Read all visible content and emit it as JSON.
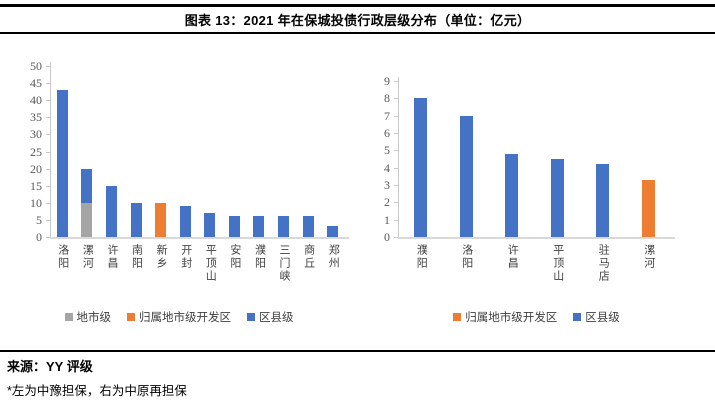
{
  "page": {
    "title": "图表 13：2021 年在保城投债行政层级分布（单位：亿元）"
  },
  "colors": {
    "blue": "#4472c4",
    "orange": "#ed7d31",
    "gray": "#a5a5a5",
    "axis": "#c9c9c9",
    "baseline": "#d9d9d9",
    "tick_label": "#595959",
    "rule": "#000000"
  },
  "series_colors": {
    "地市级": "#a5a5a5",
    "归属地市级开发区": "#ed7d31",
    "区县级": "#4472c4"
  },
  "chart_data": [
    {
      "type": "bar",
      "position": "left",
      "categories": [
        "洛阳",
        "漯河",
        "许昌",
        "南阳",
        "新乡",
        "开封",
        "平顶山",
        "安阳",
        "濮阳",
        "三门峡",
        "商丘",
        "郑州"
      ],
      "bars": [
        {
          "category": "洛阳",
          "segments": [
            {
              "series": "区县级",
              "value": 43
            }
          ]
        },
        {
          "category": "漯河",
          "segments": [
            {
              "series": "地市级",
              "value": 10
            },
            {
              "series": "区县级",
              "value": 10
            }
          ]
        },
        {
          "category": "许昌",
          "segments": [
            {
              "series": "区县级",
              "value": 15
            }
          ]
        },
        {
          "category": "南阳",
          "segments": [
            {
              "series": "区县级",
              "value": 10
            }
          ]
        },
        {
          "category": "新乡",
          "segments": [
            {
              "series": "归属地市级开发区",
              "value": 10
            }
          ]
        },
        {
          "category": "开封",
          "segments": [
            {
              "series": "区县级",
              "value": 9
            }
          ]
        },
        {
          "category": "平顶山",
          "segments": [
            {
              "series": "区县级",
              "value": 7
            }
          ]
        },
        {
          "category": "安阳",
          "segments": [
            {
              "series": "区县级",
              "value": 6
            }
          ]
        },
        {
          "category": "濮阳",
          "segments": [
            {
              "series": "区县级",
              "value": 6
            }
          ]
        },
        {
          "category": "三门峡",
          "segments": [
            {
              "series": "区县级",
              "value": 6
            }
          ]
        },
        {
          "category": "商丘",
          "segments": [
            {
              "series": "区县级",
              "value": 6
            }
          ]
        },
        {
          "category": "郑州",
          "segments": [
            {
              "series": "区县级",
              "value": 3.2
            }
          ]
        }
      ],
      "ylim": [
        0,
        50
      ],
      "yticks": [
        0,
        5,
        10,
        15,
        20,
        25,
        30,
        35,
        40,
        45,
        50
      ],
      "grid": false,
      "legend": [
        "地市级",
        "归属地市级开发区",
        "区县级"
      ],
      "legend_position": "bottom"
    },
    {
      "type": "bar",
      "position": "right",
      "categories": [
        "濮阳",
        "洛阳",
        "许昌",
        "平顶山",
        "驻马店",
        "漯河"
      ],
      "bars": [
        {
          "category": "濮阳",
          "segments": [
            {
              "series": "区县级",
              "value": 8
            }
          ]
        },
        {
          "category": "洛阳",
          "segments": [
            {
              "series": "区县级",
              "value": 7
            }
          ]
        },
        {
          "category": "许昌",
          "segments": [
            {
              "series": "区县级",
              "value": 4.8
            }
          ]
        },
        {
          "category": "平顶山",
          "segments": [
            {
              "series": "区县级",
              "value": 4.5
            }
          ]
        },
        {
          "category": "驻马店",
          "segments": [
            {
              "series": "区县级",
              "value": 4.2
            }
          ]
        },
        {
          "category": "漯河",
          "segments": [
            {
              "series": "归属地市级开发区",
              "value": 3.3
            }
          ]
        }
      ],
      "ylim": [
        0,
        9
      ],
      "yticks": [
        0,
        1,
        2,
        3,
        4,
        5,
        6,
        7,
        8,
        9
      ],
      "grid": false,
      "legend": [
        "归属地市级开发区",
        "区县级"
      ],
      "legend_position": "bottom"
    }
  ],
  "footer": {
    "source": "来源：YY 评级",
    "note": "*左为中豫担保，右为中原再担保"
  }
}
